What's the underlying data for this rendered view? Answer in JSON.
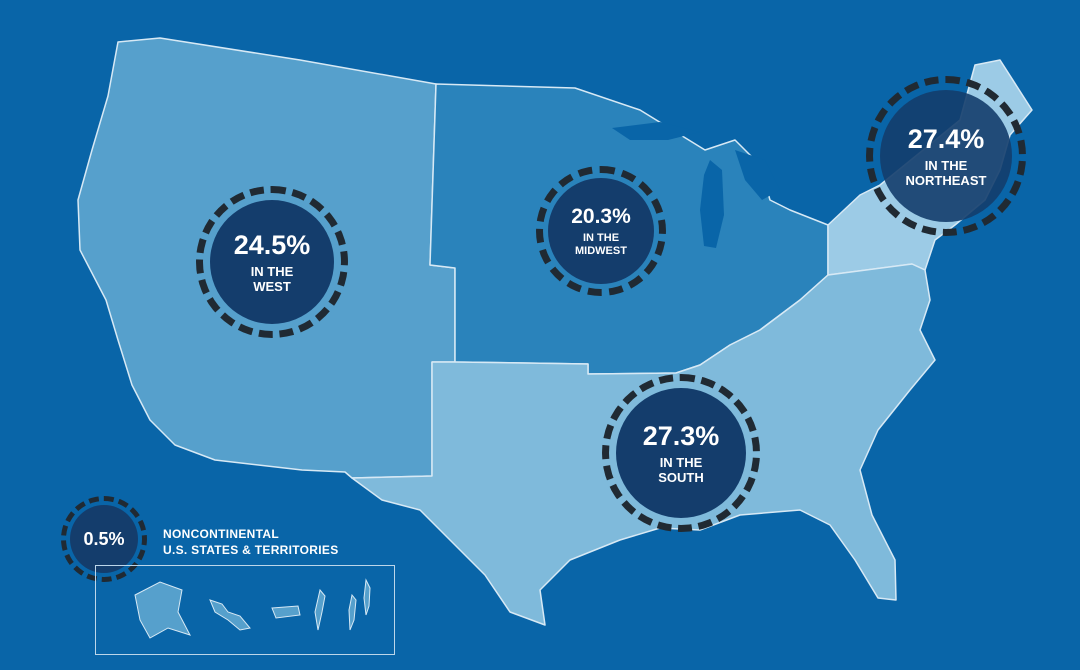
{
  "colors": {
    "background": "#0965a8",
    "west": "#56a0cc",
    "midwest": "#2a83bb",
    "south": "#7fbadb",
    "northeast": "#9ccbe6",
    "badge": "#143d6c",
    "ring": "#202a33"
  },
  "regions": {
    "west": {
      "percent": "24.5%",
      "line1": "IN THE",
      "line2": "WEST"
    },
    "midwest": {
      "percent": "20.3%",
      "line1": "IN THE",
      "line2": "MIDWEST"
    },
    "northeast": {
      "percent": "27.4%",
      "line1": "IN THE",
      "line2": "NORTHEAST"
    },
    "south": {
      "percent": "27.3%",
      "line1": "IN THE",
      "line2": "SOUTH"
    }
  },
  "noncontinental": {
    "percent": "0.5%",
    "line1": "NONCONTINENTAL",
    "line2": "U.S. STATES & TERRITORIES"
  }
}
